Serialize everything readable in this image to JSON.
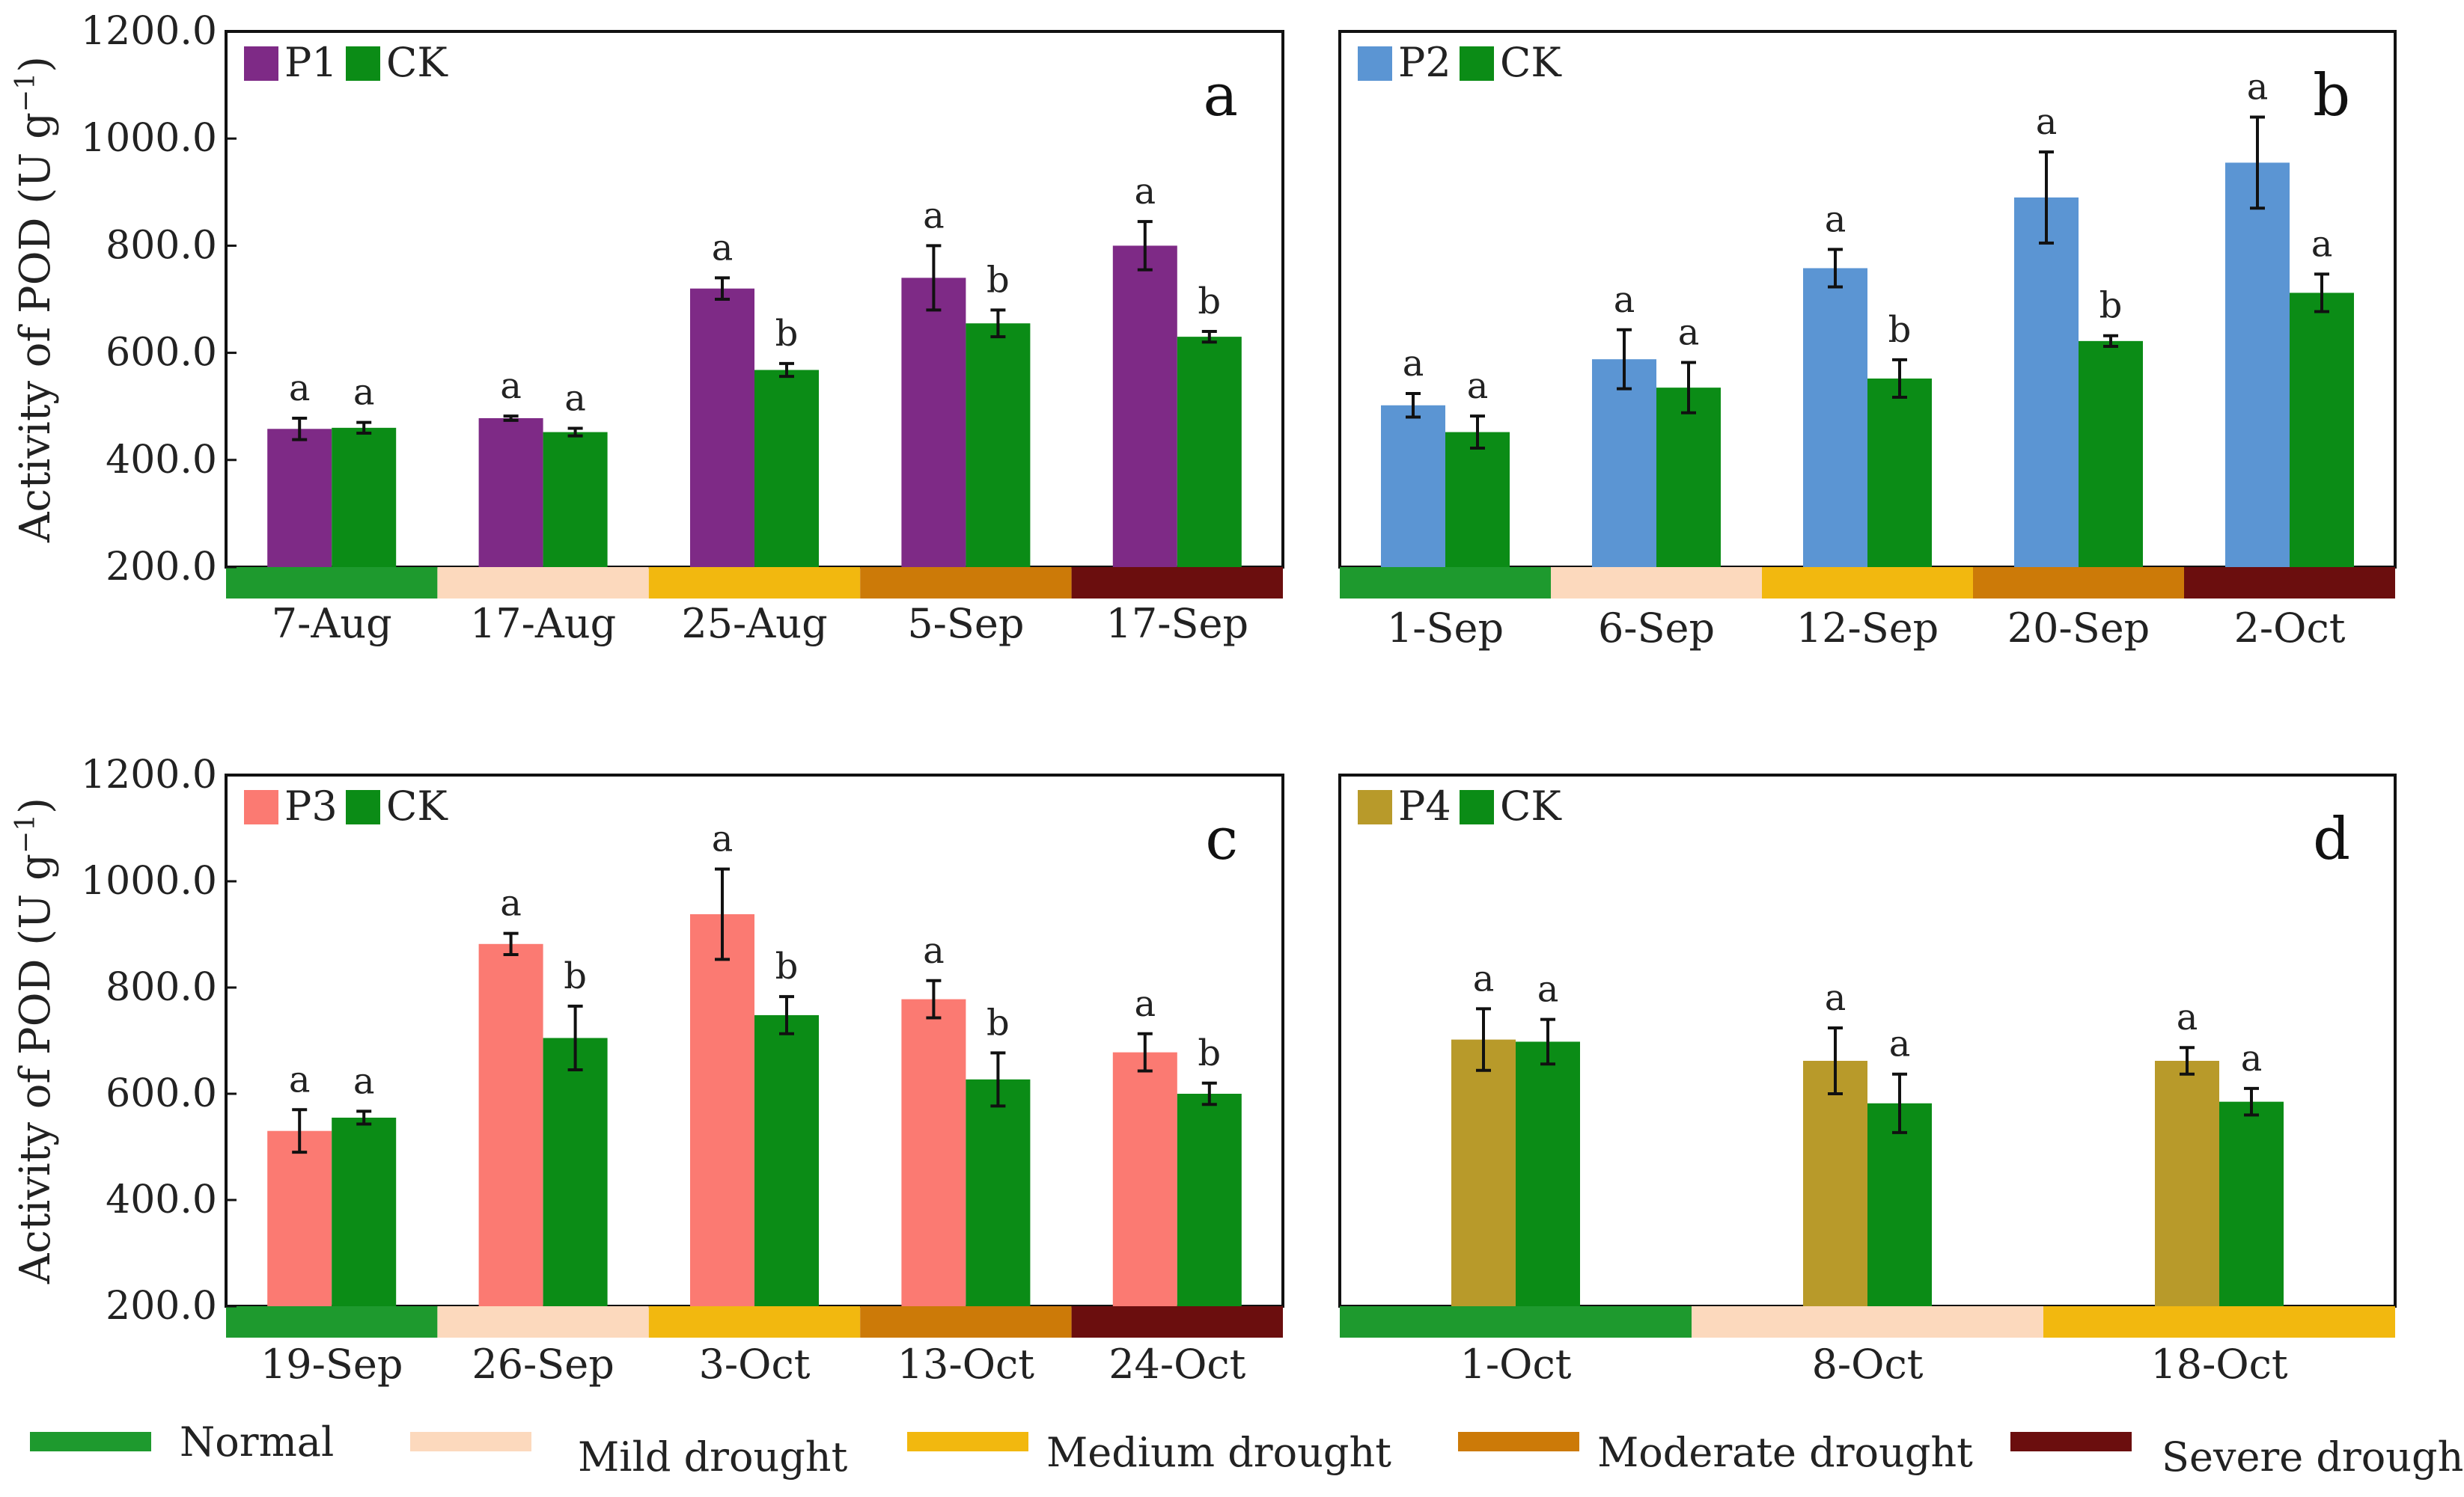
{
  "y_axis_label": "Activity of  POD (U g",
  "y_axis_superscript": "−1",
  "y_axis_close": ")",
  "drought_legend": [
    {
      "label": "Normal",
      "color": "#1e9a2e"
    },
    {
      "label": "Mild drought",
      "color": "#fcd9bd"
    },
    {
      "label": "Medium drought",
      "color": "#f2b80f"
    },
    {
      "label": "Moderate drought",
      "color": "#cc7a08"
    },
    {
      "label": "Severe drought",
      "color": "#6b0e0e"
    }
  ],
  "chart_data": [
    {
      "type": "bar",
      "panel": "a",
      "categories": [
        "7-Aug",
        "17-Aug",
        "25-Aug",
        "5-Sep",
        "17-Sep"
      ],
      "series": [
        {
          "name": "P1",
          "color": "#7e2a86",
          "values": [
            458,
            478,
            720,
            740,
            800
          ],
          "errors": [
            20,
            4,
            20,
            60,
            45
          ],
          "letters": [
            "a",
            "a",
            "a",
            "a",
            "a"
          ]
        },
        {
          "name": "CK",
          "color": "#0b8c16",
          "values": [
            460,
            452,
            568,
            655,
            630
          ],
          "errors": [
            10,
            7,
            12,
            25,
            10
          ],
          "letters": [
            "a",
            "a",
            "b",
            "b",
            "b"
          ]
        }
      ],
      "drought_levels": [
        0,
        1,
        2,
        3,
        4
      ],
      "ylim": [
        200,
        1200
      ],
      "yticks": [
        "200.0",
        "400.0",
        "600.0",
        "800.0",
        "1000.0",
        "1200.0"
      ],
      "show_ylabel": true
    },
    {
      "type": "bar",
      "panel": "b",
      "categories": [
        "1-Sep",
        "6-Sep",
        "12-Sep",
        "20-Sep",
        "2-Oct"
      ],
      "series": [
        {
          "name": "P2",
          "color": "#5b95d3",
          "values": [
            502,
            588,
            758,
            890,
            955
          ],
          "errors": [
            22,
            55,
            35,
            85,
            85
          ],
          "letters": [
            "a",
            "a",
            "a",
            "a",
            "a"
          ]
        },
        {
          "name": "CK",
          "color": "#0b8c16",
          "values": [
            452,
            535,
            552,
            622,
            712
          ],
          "errors": [
            30,
            47,
            35,
            10,
            35
          ],
          "letters": [
            "a",
            "a",
            "b",
            "b",
            "a"
          ]
        }
      ],
      "drought_levels": [
        0,
        1,
        2,
        3,
        4
      ],
      "ylim": [
        200,
        1200
      ],
      "yticks": [],
      "show_ylabel": false
    },
    {
      "type": "bar",
      "panel": "c",
      "categories": [
        "19-Sep",
        "26-Sep",
        "3-Oct",
        "13-Oct",
        "24-Oct"
      ],
      "series": [
        {
          "name": "P3",
          "color": "#fb7a72",
          "values": [
            530,
            882,
            938,
            778,
            678
          ],
          "errors": [
            40,
            20,
            85,
            35,
            35
          ],
          "letters": [
            "a",
            "a",
            "a",
            "a",
            "a"
          ]
        },
        {
          "name": "CK",
          "color": "#0b8c16",
          "values": [
            555,
            705,
            748,
            627,
            600
          ],
          "errors": [
            12,
            60,
            35,
            50,
            20
          ],
          "letters": [
            "a",
            "b",
            "b",
            "b",
            "b"
          ]
        }
      ],
      "drought_levels": [
        0,
        1,
        2,
        3,
        4
      ],
      "ylim": [
        200,
        1200
      ],
      "yticks": [
        "200.0",
        "400.0",
        "600.0",
        "800.0",
        "1000.0",
        "1200.0"
      ],
      "show_ylabel": true
    },
    {
      "type": "bar",
      "panel": "d",
      "categories": [
        "1-Oct",
        "8-Oct",
        "18-Oct"
      ],
      "series": [
        {
          "name": "P4",
          "color": "#b89a2a",
          "values": [
            702,
            662,
            662
          ],
          "errors": [
            58,
            62,
            25
          ],
          "letters": [
            "a",
            "a",
            "a"
          ]
        },
        {
          "name": "CK",
          "color": "#0b8c16",
          "values": [
            698,
            582,
            585
          ],
          "errors": [
            42,
            55,
            25
          ],
          "letters": [
            "a",
            "a",
            "a"
          ]
        }
      ],
      "drought_levels": [
        0,
        1,
        2
      ],
      "ylim": [
        200,
        1200
      ],
      "yticks": [],
      "show_ylabel": false
    }
  ]
}
